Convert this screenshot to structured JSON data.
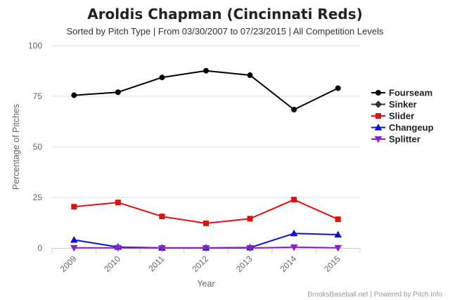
{
  "chart_data": {
    "type": "line",
    "title": "Aroldis Chapman (Cincinnati Reds)",
    "subtitle": "Sorted by Pitch Type | From 03/30/2007 to 07/23/2015 | All Competition Levels",
    "xlabel": "Year",
    "ylabel": "Percentage of Pitches",
    "categories": [
      "2009",
      "2010",
      "2011",
      "2012",
      "2013",
      "2014",
      "2015"
    ],
    "ylim": [
      0,
      100
    ],
    "yticks": [
      0,
      25,
      50,
      75,
      100
    ],
    "grid": true,
    "legend_position": "right",
    "series": [
      {
        "name": "Fourseam",
        "color": "#000000",
        "marker": "circle",
        "values": [
          75.5,
          77.0,
          84.3,
          87.6,
          85.4,
          68.4,
          79.0
        ]
      },
      {
        "name": "Sinker",
        "color": "#333333",
        "marker": "diamond",
        "values": [
          null,
          null,
          null,
          null,
          null,
          null,
          null
        ]
      },
      {
        "name": "Slider",
        "color": "#dd1111",
        "marker": "square",
        "values": [
          20.4,
          22.5,
          15.6,
          12.2,
          14.5,
          23.9,
          14.2
        ]
      },
      {
        "name": "Changeup",
        "color": "#1111cc",
        "marker": "triangle",
        "values": [
          4.0,
          0.5,
          0.1,
          0.1,
          0.2,
          7.2,
          6.6
        ]
      },
      {
        "name": "Splitter",
        "color": "#8822cc",
        "marker": "triangle-down",
        "values": [
          0.1,
          0.1,
          0.0,
          0.0,
          0.0,
          0.4,
          0.1
        ]
      }
    ]
  },
  "credits": "BrooksBaseball.net | Powered by Pitch Info"
}
